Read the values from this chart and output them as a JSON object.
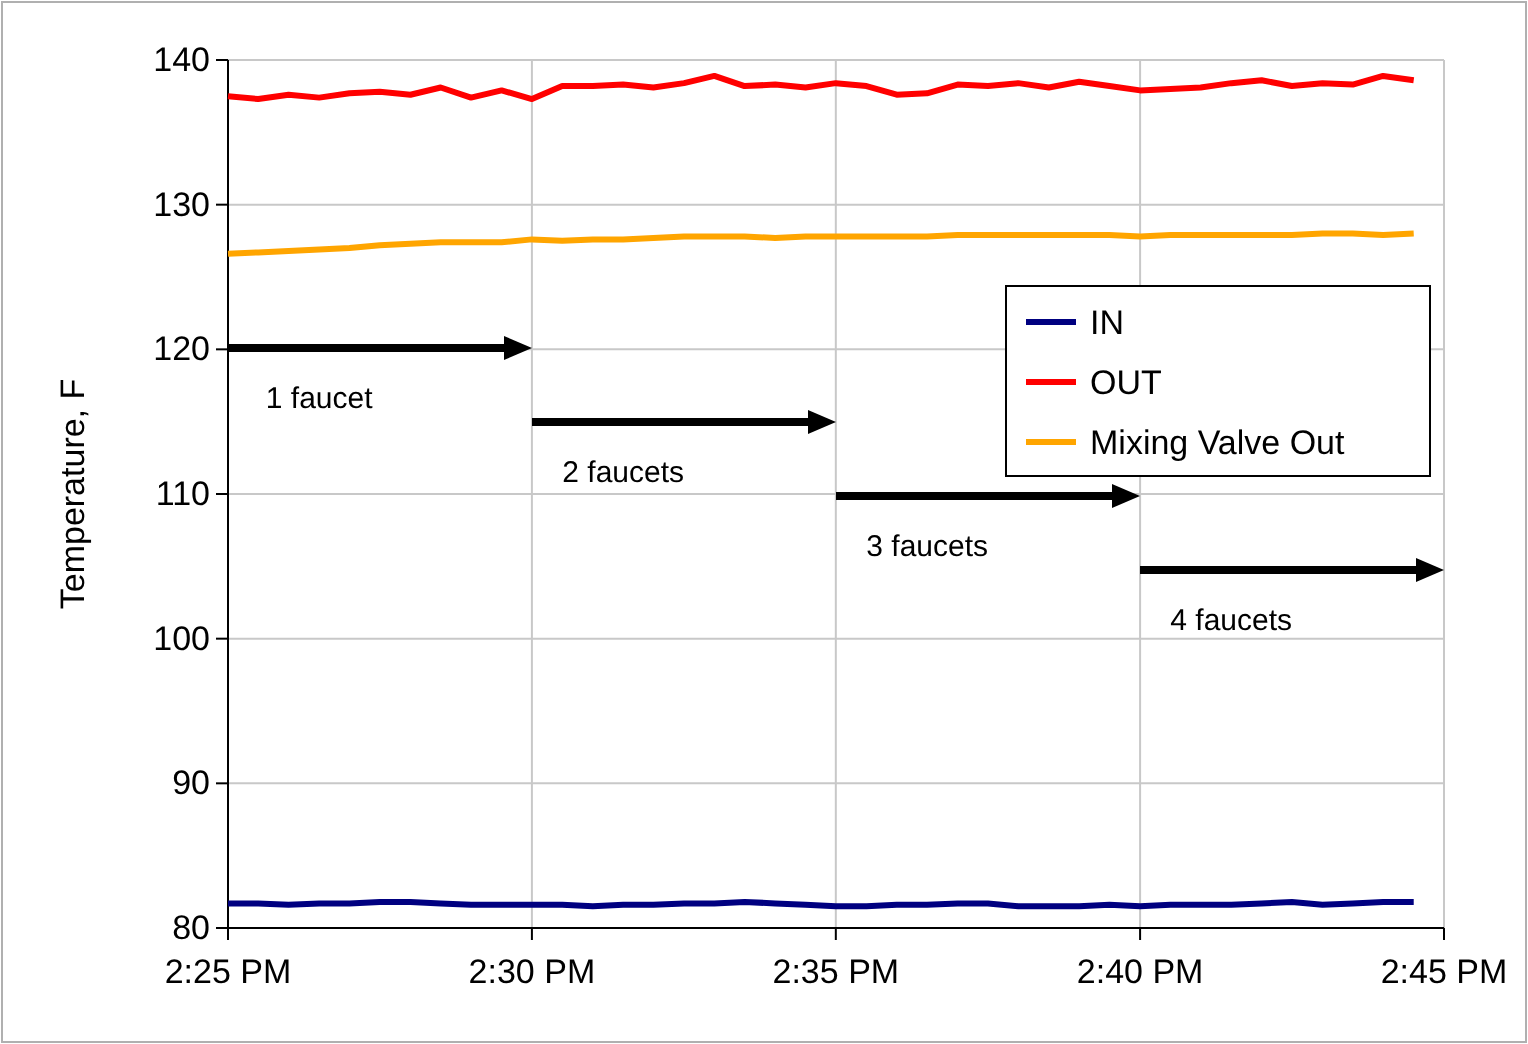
{
  "chart_data": {
    "type": "line",
    "ylabel": "Temperature, F",
    "x": [
      14.4167,
      14.425,
      14.4333,
      14.4417,
      14.45,
      14.4583,
      14.4667,
      14.475,
      14.4833,
      14.4917,
      14.5,
      14.5083,
      14.5167,
      14.525,
      14.5333,
      14.5417,
      14.55,
      14.5583,
      14.5667,
      14.575,
      14.5833,
      14.5917,
      14.6,
      14.6083,
      14.6167,
      14.625,
      14.6333,
      14.6417,
      14.65,
      14.6583,
      14.6667,
      14.675,
      14.6833,
      14.6917,
      14.7,
      14.7083,
      14.7167,
      14.725,
      14.7333,
      14.7417
    ],
    "series": [
      {
        "name": "IN",
        "color": "#000080",
        "values": [
          81.7,
          81.7,
          81.6,
          81.7,
          81.7,
          81.8,
          81.8,
          81.7,
          81.6,
          81.6,
          81.6,
          81.6,
          81.5,
          81.6,
          81.6,
          81.7,
          81.7,
          81.8,
          81.7,
          81.6,
          81.5,
          81.5,
          81.6,
          81.6,
          81.7,
          81.7,
          81.5,
          81.5,
          81.5,
          81.6,
          81.5,
          81.6,
          81.6,
          81.6,
          81.7,
          81.8,
          81.6,
          81.7,
          81.8,
          81.8
        ]
      },
      {
        "name": "OUT",
        "color": "#ff0000",
        "values": [
          137.5,
          137.3,
          137.6,
          137.4,
          137.7,
          137.8,
          137.6,
          138.1,
          137.4,
          137.9,
          137.3,
          138.2,
          138.2,
          138.3,
          138.1,
          138.4,
          138.9,
          138.2,
          138.3,
          138.1,
          138.4,
          138.2,
          137.6,
          137.7,
          138.3,
          138.2,
          138.4,
          138.1,
          138.5,
          138.2,
          137.9,
          138.0,
          138.1,
          138.4,
          138.6,
          138.2,
          138.4,
          138.3,
          138.9,
          138.6
        ]
      },
      {
        "name": "Mixing Valve Out",
        "color": "#ffa500",
        "values": [
          126.6,
          126.7,
          126.8,
          126.9,
          127.0,
          127.2,
          127.3,
          127.4,
          127.4,
          127.4,
          127.6,
          127.5,
          127.6,
          127.6,
          127.7,
          127.8,
          127.8,
          127.8,
          127.7,
          127.8,
          127.8,
          127.8,
          127.8,
          127.8,
          127.9,
          127.9,
          127.9,
          127.9,
          127.9,
          127.9,
          127.8,
          127.9,
          127.9,
          127.9,
          127.9,
          127.9,
          128.0,
          128.0,
          127.9,
          128.0
        ]
      }
    ],
    "xlim": [
      14.4167,
      14.75
    ],
    "xticks": [
      {
        "value": 14.4167,
        "label": "2:25 PM"
      },
      {
        "value": 14.5,
        "label": "2:30 PM"
      },
      {
        "value": 14.5833,
        "label": "2:35 PM"
      },
      {
        "value": 14.6667,
        "label": "2:40 PM"
      },
      {
        "value": 14.75,
        "label": "2:45 PM"
      }
    ],
    "ylim": [
      80,
      140
    ],
    "yticks": [
      80,
      90,
      100,
      110,
      120,
      130,
      140
    ],
    "grid": true,
    "legend": "top right",
    "marker": "none",
    "line_style": "solid",
    "annotations": [
      "1 faucet",
      "2 faucets",
      "3 faucets",
      "4 faucets"
    ]
  }
}
